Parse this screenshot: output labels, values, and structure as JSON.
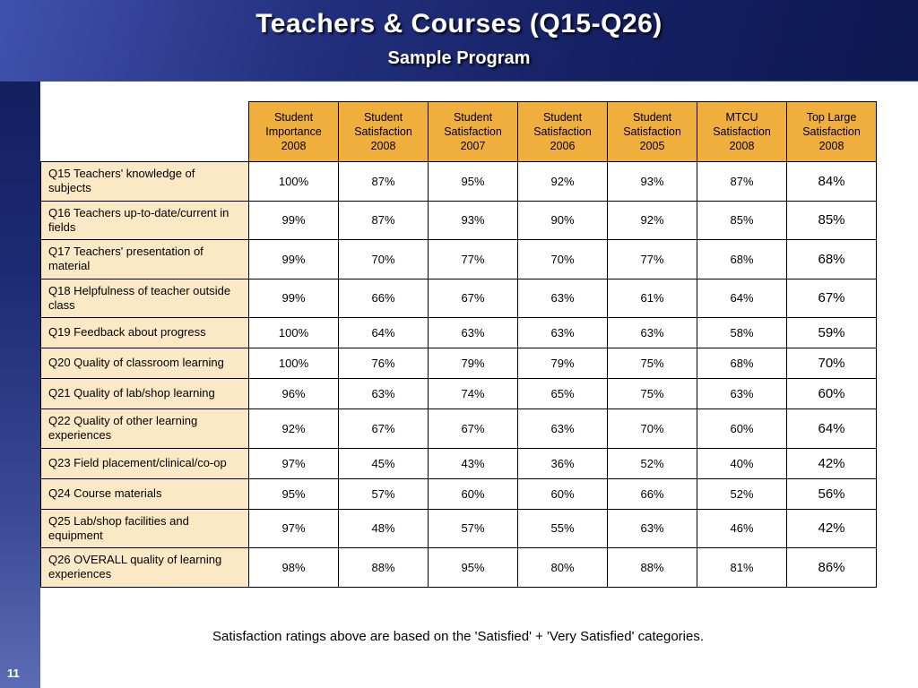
{
  "slide": {
    "title": "Teachers & Courses (Q15-Q26)",
    "subtitle": "Sample Program",
    "footnote": "Satisfaction ratings above are based on the 'Satisfied' + 'Very Satisfied' categories.",
    "page_number": "11"
  },
  "colors": {
    "navy": "#131F60",
    "gold": "#F0AF3C",
    "cream": "#FBE9C5"
  },
  "chart_data": {
    "type": "table",
    "columns": [
      "Student Importance 2008",
      "Student Satisfaction 2008",
      "Student Satisfaction 2007",
      "Student Satisfaction 2006",
      "Student Satisfaction 2005",
      "MTCU Satisfaction 2008",
      "Top Large Satisfaction 2008"
    ],
    "rows": [
      {
        "label": "Q15 Teachers' knowledge of subjects",
        "values": [
          "100%",
          "87%",
          "95%",
          "92%",
          "93%",
          "87%",
          "84%"
        ]
      },
      {
        "label": "Q16 Teachers up-to-date/current in fields",
        "values": [
          "99%",
          "87%",
          "93%",
          "90%",
          "92%",
          "85%",
          "85%"
        ]
      },
      {
        "label": "Q17 Teachers' presentation of material",
        "values": [
          "99%",
          "70%",
          "77%",
          "70%",
          "77%",
          "68%",
          "68%"
        ]
      },
      {
        "label": "Q18 Helpfulness of teacher outside class",
        "values": [
          "99%",
          "66%",
          "67%",
          "63%",
          "61%",
          "64%",
          "67%"
        ]
      },
      {
        "label": "Q19 Feedback about progress",
        "values": [
          "100%",
          "64%",
          "63%",
          "63%",
          "63%",
          "58%",
          "59%"
        ]
      },
      {
        "label": "Q20 Quality of classroom learning",
        "values": [
          "100%",
          "76%",
          "79%",
          "79%",
          "75%",
          "68%",
          "70%"
        ]
      },
      {
        "label": "Q21 Quality of lab/shop learning",
        "values": [
          "96%",
          "63%",
          "74%",
          "65%",
          "75%",
          "63%",
          "60%"
        ]
      },
      {
        "label": "Q22 Quality of other learning experiences",
        "values": [
          "92%",
          "67%",
          "67%",
          "63%",
          "70%",
          "60%",
          "64%"
        ]
      },
      {
        "label": "Q23 Field placement/clinical/co-op",
        "values": [
          "97%",
          "45%",
          "43%",
          "36%",
          "52%",
          "40%",
          "42%"
        ]
      },
      {
        "label": "Q24 Course materials",
        "values": [
          "95%",
          "57%",
          "60%",
          "60%",
          "66%",
          "52%",
          "56%"
        ]
      },
      {
        "label": "Q25 Lab/shop facilities and equipment",
        "values": [
          "97%",
          "48%",
          "57%",
          "55%",
          "63%",
          "46%",
          "42%"
        ]
      },
      {
        "label": "Q26 OVERALL quality of learning experiences",
        "values": [
          "98%",
          "88%",
          "95%",
          "80%",
          "88%",
          "81%",
          "86%"
        ]
      }
    ]
  }
}
